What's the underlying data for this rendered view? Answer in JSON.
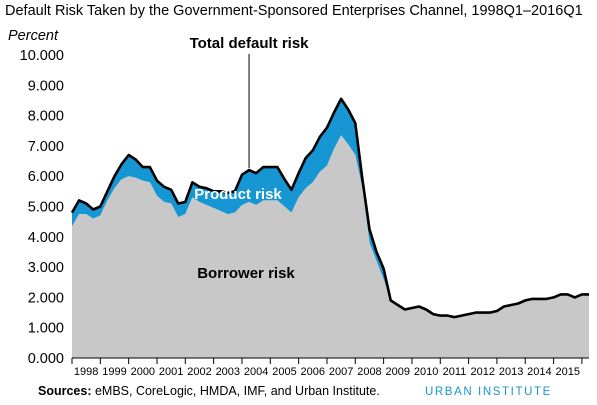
{
  "title": "Default Risk Taken by the Government-Sponsored Enterprises Channel, 1998Q1–2016Q1",
  "sources_label": "Sources:",
  "sources_text": " eMBS, CoreLogic, HMDA, IMF, and Urban Institute.",
  "brand": "URBAN INSTITUTE",
  "colors": {
    "borrower": "#c8c8c8",
    "product": "#1696d2",
    "total": "#000000",
    "brand": "#1696d2"
  },
  "chart_data": {
    "type": "area",
    "y_unit_label": "Percent",
    "ylim": [
      0,
      10
    ],
    "y_ticks": [
      "0.000",
      "1.000",
      "2.000",
      "3.000",
      "4.000",
      "5.000",
      "6.000",
      "7.000",
      "8.000",
      "9.000",
      "10.000"
    ],
    "x_tick_labels": [
      "1998",
      "1999",
      "2000",
      "2001",
      "2002",
      "2003",
      "2004",
      "2005",
      "2006",
      "2007",
      "2008",
      "2009",
      "2010",
      "2011",
      "2012",
      "2013",
      "2014",
      "2015"
    ],
    "annotations": {
      "total": "Total default risk",
      "product": "Product risk",
      "borrower": "Borrower risk"
    },
    "series": [
      {
        "name": "Borrower risk",
        "values": [
          4.35,
          4.75,
          4.75,
          4.6,
          4.7,
          5.2,
          5.6,
          5.9,
          6.0,
          5.95,
          5.85,
          5.8,
          5.35,
          5.15,
          5.1,
          4.65,
          4.75,
          5.3,
          5.15,
          5.05,
          4.95,
          4.85,
          4.75,
          4.8,
          5.05,
          5.15,
          5.05,
          5.2,
          5.2,
          5.2,
          5.0,
          4.8,
          5.3,
          5.6,
          5.8,
          6.15,
          6.35,
          6.9,
          7.35,
          7.05,
          6.7,
          5.6,
          3.8,
          3.2,
          2.6,
          1.9,
          1.75,
          1.6,
          1.65,
          1.7,
          1.6,
          1.45,
          1.4,
          1.4,
          1.35,
          1.4,
          1.45,
          1.5,
          1.5,
          1.5,
          1.55,
          1.7,
          1.75,
          1.8,
          1.9,
          1.95,
          1.95,
          1.95,
          2.0,
          2.1,
          2.1,
          2.0,
          2.1,
          2.1
        ]
      },
      {
        "name": "Total default risk",
        "values": [
          4.8,
          5.2,
          5.1,
          4.9,
          5.0,
          5.5,
          6.0,
          6.4,
          6.7,
          6.55,
          6.3,
          6.3,
          5.85,
          5.65,
          5.55,
          5.1,
          5.15,
          5.8,
          5.65,
          5.6,
          5.5,
          5.5,
          5.45,
          5.5,
          6.05,
          6.2,
          6.1,
          6.3,
          6.3,
          6.3,
          5.9,
          5.55,
          6.1,
          6.6,
          6.85,
          7.3,
          7.6,
          8.1,
          8.55,
          8.2,
          7.75,
          5.9,
          4.25,
          3.5,
          2.95,
          1.9,
          1.75,
          1.6,
          1.65,
          1.7,
          1.6,
          1.45,
          1.4,
          1.4,
          1.35,
          1.4,
          1.45,
          1.5,
          1.5,
          1.5,
          1.55,
          1.7,
          1.75,
          1.8,
          1.9,
          1.95,
          1.95,
          1.95,
          2.0,
          2.1,
          2.1,
          2.0,
          2.1,
          2.1
        ]
      }
    ],
    "grid": false,
    "legend": "inline labels"
  }
}
